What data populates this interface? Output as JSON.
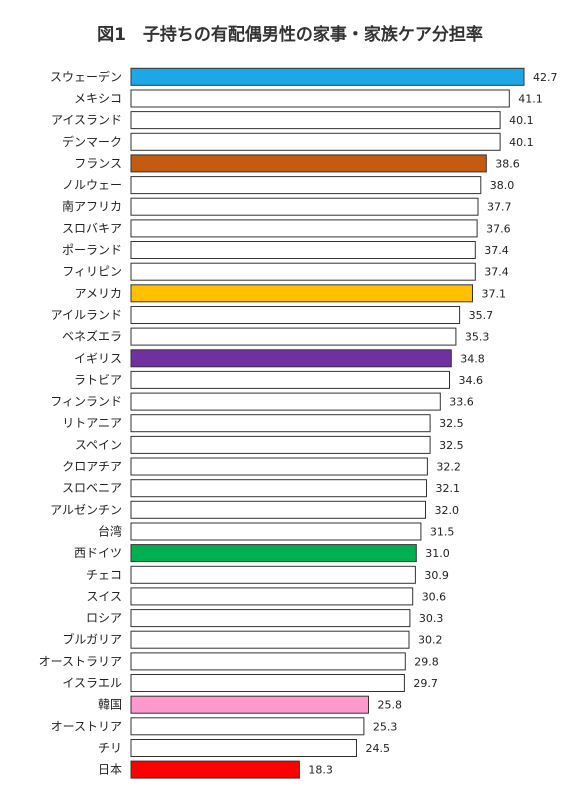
{
  "chart_data": {
    "type": "bar",
    "orientation": "horizontal",
    "title": "図1　子持ちの有配偶男性の家事・家族ケア分担率",
    "xlabel": "",
    "ylabel": "",
    "grid": false,
    "legend": "none",
    "xlim": [
      0,
      44
    ],
    "categories": [
      "スウェーデン",
      "メキシコ",
      "アイスランド",
      "デンマーク",
      "フランス",
      "ノルウェー",
      "南アフリカ",
      "スロバキア",
      "ポーランド",
      "フィリピン",
      "アメリカ",
      "アイルランド",
      "ベネズエラ",
      "イギリス",
      "ラトビア",
      "フィンランド",
      "リトアニア",
      "スペイン",
      "クロアチア",
      "スロベニア",
      "アルゼンチン",
      "台湾",
      "西ドイツ",
      "チェコ",
      "スイス",
      "ロシア",
      "ブルガリア",
      "オーストラリア",
      "イスラエル",
      "韓国",
      "オーストリア",
      "チリ",
      "日本"
    ],
    "values": [
      42.7,
      41.1,
      40.1,
      40.1,
      38.6,
      38.0,
      37.7,
      37.6,
      37.4,
      37.4,
      37.1,
      35.7,
      35.3,
      34.8,
      34.6,
      33.6,
      32.5,
      32.5,
      32.2,
      32.1,
      32.0,
      31.5,
      31.0,
      30.9,
      30.6,
      30.3,
      30.2,
      29.8,
      29.7,
      25.8,
      25.3,
      24.5,
      18.3
    ],
    "value_labels": [
      "42.7",
      "41.1",
      "40.1",
      "40.1",
      "38.6",
      "38.0",
      "37.7",
      "37.6",
      "37.4",
      "37.4",
      "37.1",
      "35.7",
      "35.3",
      "34.8",
      "34.6",
      "33.6",
      "32.5",
      "32.5",
      "32.2",
      "32.1",
      "32.0",
      "31.5",
      "31.0",
      "30.9",
      "30.6",
      "30.3",
      "30.2",
      "29.8",
      "29.7",
      "25.8",
      "25.3",
      "24.5",
      "18.3"
    ],
    "default_color": "#ffffff",
    "highlight_colors": {
      "スウェーデン": "#1ea7e8",
      "フランス": "#c55a11",
      "アメリカ": "#ffc000",
      "イギリス": "#7030a0",
      "西ドイツ": "#00b050",
      "韓国": "#ff99cc",
      "日本": "#ff0000"
    }
  }
}
